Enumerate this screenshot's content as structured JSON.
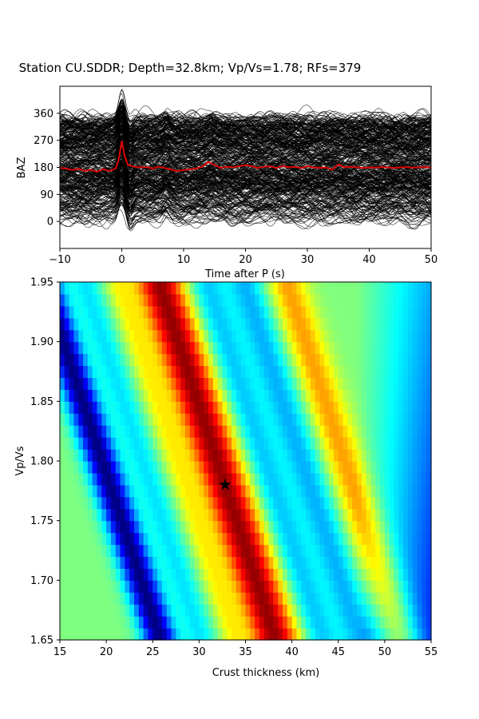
{
  "figure": {
    "title": "Station CU.SDDR; Depth=32.8km; Vp/Vs=1.78; RFs=379"
  },
  "chart_data": [
    {
      "type": "line",
      "panel": "receiver-function-waveforms",
      "xlabel": "Time after P (s)",
      "ylabel": "BAZ",
      "xlim": [
        -10,
        50
      ],
      "ylim": [
        -90,
        450
      ],
      "xticks": [
        -10,
        0,
        10,
        20,
        30,
        40,
        50
      ],
      "xtick_labels": [
        "−10",
        "0",
        "10",
        "20",
        "30",
        "40",
        "50"
      ],
      "yticks": [
        0,
        90,
        180,
        270,
        360
      ],
      "yticks_labels": [
        "0",
        "90",
        "180",
        "270",
        "360"
      ],
      "traces": {
        "color": "#000000",
        "count": 379,
        "baz_range": [
          0,
          360
        ],
        "direct_p_time": 0,
        "direct_p_amplitude_deg": 85
      },
      "stack": {
        "color": "#dd0000",
        "baseline": 180,
        "x": [
          -10,
          -9,
          -8,
          -7,
          -6,
          -5,
          -4,
          -3,
          -2,
          -1,
          -0.5,
          0,
          0.5,
          1,
          2,
          3,
          4,
          5,
          6,
          7,
          8,
          9,
          10,
          11,
          12,
          13,
          14,
          15,
          16,
          17,
          18,
          19,
          20,
          21,
          22,
          23,
          24,
          25,
          26,
          27,
          28,
          29,
          30,
          31,
          32,
          33,
          34,
          35,
          36,
          37,
          38,
          39,
          40,
          41,
          42,
          43,
          44,
          45,
          46,
          47,
          48,
          49,
          50
        ],
        "y": [
          178,
          176,
          171,
          176,
          168,
          172,
          165,
          174,
          168,
          176,
          205,
          268,
          215,
          188,
          182,
          180,
          181,
          176,
          182,
          178,
          172,
          168,
          171,
          173,
          176,
          182,
          198,
          188,
          178,
          182,
          180,
          184,
          188,
          184,
          178,
          182,
          184,
          178,
          185,
          180,
          182,
          178,
          184,
          180,
          178,
          180,
          172,
          190,
          180,
          182,
          180,
          178,
          180,
          179,
          181,
          180,
          178,
          180,
          181,
          179,
          180,
          181,
          179
        ]
      }
    },
    {
      "type": "heatmap",
      "panel": "h-kappa-stack",
      "xlabel": "Crust thickness (km)",
      "ylabel": "Vp/Vs",
      "xlim": [
        15,
        55
      ],
      "ylim": [
        1.65,
        1.95
      ],
      "xticks": [
        15,
        20,
        25,
        30,
        35,
        40,
        45,
        50,
        55
      ],
      "xtick_labels": [
        "15",
        "20",
        "25",
        "30",
        "35",
        "40",
        "45",
        "50",
        "55"
      ],
      "yticks": [
        1.65,
        1.7,
        1.75,
        1.8,
        1.85,
        1.9,
        1.95
      ],
      "ytick_labels": [
        "1.65",
        "1.70",
        "1.75",
        "1.80",
        "1.85",
        "1.90",
        "1.95"
      ],
      "colormap": "jet",
      "grid_cols": 80,
      "grid_rows": 30,
      "reference_vpvs": 1.78,
      "ridge_slope_km_per_unit": -42,
      "components": [
        {
          "center_km": 32.8,
          "width_km": 1.8,
          "amplitude": 0.48
        },
        {
          "center_km": 46.5,
          "width_km": 1.5,
          "amplitude": 0.22
        },
        {
          "center_km": 20.4,
          "width_km": 1.3,
          "amplitude": -0.5
        },
        {
          "center_km": 24.8,
          "width_km": 1.2,
          "amplitude": -0.15
        },
        {
          "center_km": 37.8,
          "width_km": 1.4,
          "amplitude": -0.18
        },
        {
          "center_km": 42.0,
          "width_km": 1.5,
          "amplitude": -0.2
        },
        {
          "center_km": 28.3,
          "width_km": 1.0,
          "amplitude": 0.12
        }
      ],
      "edge_decay": {
        "start_km": 47,
        "end_km": 55,
        "amount": 0.35,
        "vpvs_gain": 0.4
      },
      "best_fit": {
        "thickness_km": 32.8,
        "vpvs": 1.78,
        "marker": "star",
        "color": "#000000"
      }
    }
  ]
}
